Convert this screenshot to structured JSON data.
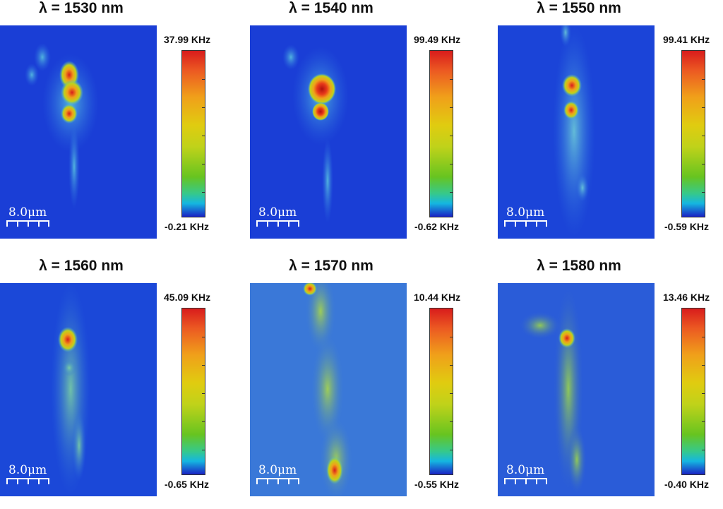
{
  "figure": {
    "panels": [
      {
        "title": "λ = 1530 nm",
        "scale_label": "8.0μm",
        "colorbar_max": "37.99 KHz",
        "colorbar_min": "-0.21 KHz",
        "background": "#1a3ed6"
      },
      {
        "title": "λ = 1540 nm",
        "scale_label": "8.0μm",
        "colorbar_max": "99.49 KHz",
        "colorbar_min": "-0.62 KHz",
        "background": "#1a3ed6"
      },
      {
        "title": "λ = 1550 nm",
        "scale_label": "8.0μm",
        "colorbar_max": "99.41 KHz",
        "colorbar_min": "-0.59 KHz",
        "background": "#1b44d8"
      },
      {
        "title": "λ = 1560 nm",
        "scale_label": "8.0μm",
        "colorbar_max": "45.09 KHz",
        "colorbar_min": "-0.65 KHz",
        "background": "#1b48d8"
      },
      {
        "title": "λ = 1570 nm",
        "scale_label": "8.0μm",
        "colorbar_max": "10.44 KHz",
        "colorbar_min": "-0.55 KHz",
        "background": "#3a78d8"
      },
      {
        "title": "λ = 1580 nm",
        "scale_label": "8.0μm",
        "colorbar_max": "13.46 KHz",
        "colorbar_min": "-0.40 KHz",
        "background": "#2a5cd8"
      }
    ],
    "colormap": [
      "#1a22c4",
      "#15b6e0",
      "#67c420",
      "#e0cc10",
      "#f0a01a",
      "#d81c1c"
    ]
  }
}
